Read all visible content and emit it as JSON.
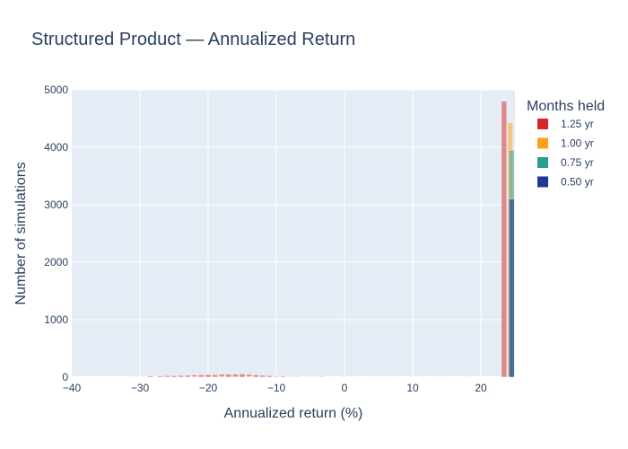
{
  "chart_data": {
    "type": "histogram",
    "title": "Structured Product — Annualized Return",
    "xlabel": "Annualized return (%)",
    "ylabel": "Number of simulations",
    "xlim": [
      -40,
      25
    ],
    "ylim": [
      0,
      5000
    ],
    "x_ticks": [
      -40,
      -30,
      -20,
      -10,
      0,
      10,
      20
    ],
    "x_tick_labels": [
      "−40",
      "−30",
      "−20",
      "−10",
      "0",
      "10",
      "20"
    ],
    "y_ticks": [
      0,
      1000,
      2000,
      3000,
      4000,
      5000
    ],
    "y_tick_labels": [
      "0",
      "1000",
      "2000",
      "3000",
      "4000",
      "5000"
    ],
    "bin_width": 0.8,
    "grid": true,
    "legend_title": "Months held",
    "legend_position": "right",
    "series": [
      {
        "name": "1.25 yr",
        "color": "#d62728",
        "opacity": 0.5,
        "bins": [
          {
            "x": -32,
            "y": 4
          },
          {
            "x": -30.5,
            "y": 8
          },
          {
            "x": -28.5,
            "y": 18
          },
          {
            "x": -27,
            "y": 22
          },
          {
            "x": -26,
            "y": 28
          },
          {
            "x": -25,
            "y": 26
          },
          {
            "x": -24,
            "y": 30
          },
          {
            "x": -23,
            "y": 32
          },
          {
            "x": -22,
            "y": 38
          },
          {
            "x": -21,
            "y": 42
          },
          {
            "x": -20,
            "y": 45
          },
          {
            "x": -19,
            "y": 44
          },
          {
            "x": -18,
            "y": 48
          },
          {
            "x": -17,
            "y": 50
          },
          {
            "x": -16,
            "y": 52
          },
          {
            "x": -15,
            "y": 55
          },
          {
            "x": -14,
            "y": 48
          },
          {
            "x": -13,
            "y": 40
          },
          {
            "x": -12,
            "y": 32
          },
          {
            "x": -11,
            "y": 26
          },
          {
            "x": -10,
            "y": 20
          },
          {
            "x": -9,
            "y": 16
          },
          {
            "x": -8,
            "y": 12
          },
          {
            "x": -7,
            "y": 10
          },
          {
            "x": -5,
            "y": 8
          },
          {
            "x": -3.5,
            "y": 14
          },
          {
            "x": -1,
            "y": 6
          },
          {
            "x": 2,
            "y": 4
          },
          {
            "x": 6,
            "y": 3
          },
          {
            "x": 10,
            "y": 3
          },
          {
            "x": 14,
            "y": 2
          },
          {
            "x": 18,
            "y": 2
          },
          {
            "x": 23.4,
            "y": 4800
          }
        ]
      },
      {
        "name": "1.00 yr",
        "color": "#ff9f1c",
        "opacity": 0.5,
        "bins": [
          {
            "x": -22,
            "y": 4
          },
          {
            "x": -18,
            "y": 6
          },
          {
            "x": -14,
            "y": 6
          },
          {
            "x": -10,
            "y": 5
          },
          {
            "x": -6,
            "y": 4
          },
          {
            "x": -2,
            "y": 3
          },
          {
            "x": 2,
            "y": 3
          },
          {
            "x": 8,
            "y": 2
          },
          {
            "x": 24.3,
            "y": 4430
          }
        ]
      },
      {
        "name": "0.75 yr",
        "color": "#2a9d8f",
        "opacity": 0.5,
        "bins": [
          {
            "x": -16,
            "y": 3
          },
          {
            "x": -10,
            "y": 4
          },
          {
            "x": -4,
            "y": 3
          },
          {
            "x": 4,
            "y": 2
          },
          {
            "x": 24.5,
            "y": 3950
          }
        ]
      },
      {
        "name": "0.50 yr",
        "color": "#1f3a93",
        "opacity": 0.6,
        "bins": [
          {
            "x": -8,
            "y": 2
          },
          {
            "x": 0,
            "y": 2
          },
          {
            "x": 24.5,
            "y": 3100
          }
        ]
      }
    ]
  }
}
